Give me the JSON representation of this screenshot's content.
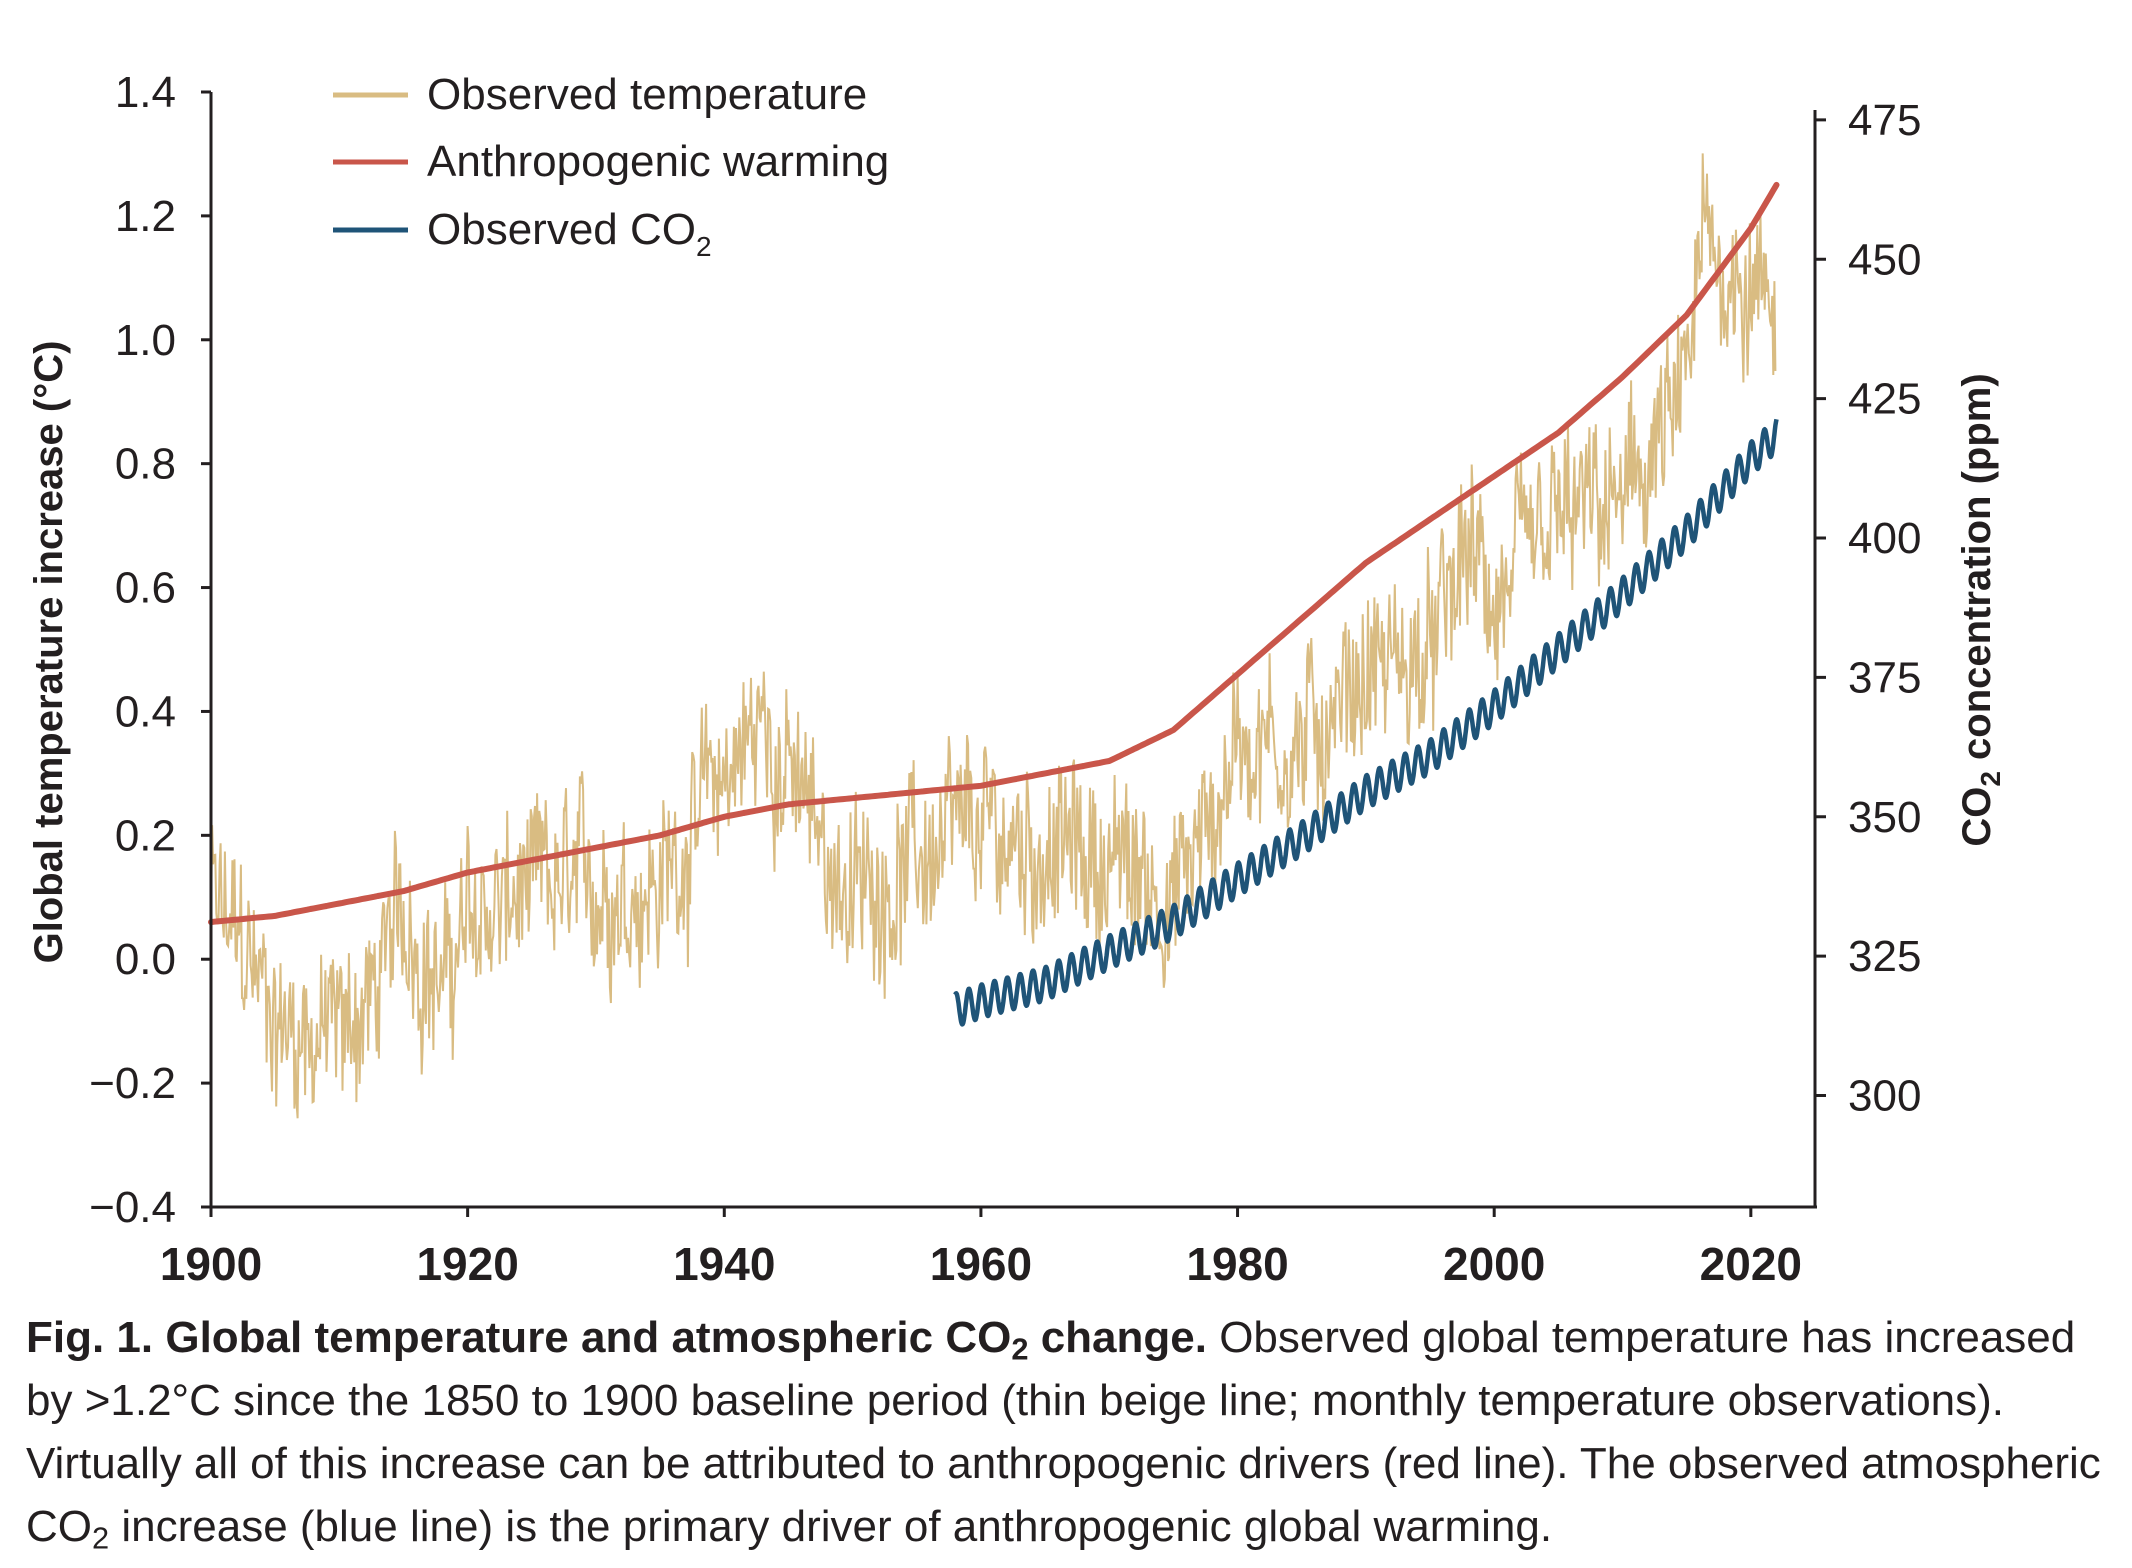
{
  "chart_data": {
    "type": "line",
    "title": "Global temperature and atmospheric CO2 change",
    "x": {
      "label": "",
      "range": [
        1900,
        2025
      ],
      "ticks": [
        1900,
        1920,
        1940,
        1960,
        1980,
        2000,
        2020
      ],
      "tick_labels": [
        "1900",
        "1920",
        "1940",
        "1960",
        "1980",
        "2000",
        "2020"
      ]
    },
    "y_left": {
      "label": "Global temperature increase (°C)",
      "range": [
        -0.4,
        1.4
      ],
      "ticks": [
        -0.4,
        -0.2,
        0.0,
        0.2,
        0.4,
        0.6,
        0.8,
        1.0,
        1.2,
        1.4
      ],
      "tick_labels": [
        "−0.4",
        "−0.2",
        "0.0",
        "0.2",
        "0.4",
        "0.6",
        "0.8",
        "1.0",
        "1.2",
        "1.4"
      ]
    },
    "y_right": {
      "label_main": "CO",
      "label_sub": "2",
      "label_rest": " concentration (ppm)",
      "range": [
        280,
        480
      ],
      "ticks": [
        300,
        325,
        350,
        375,
        400,
        425,
        450,
        475
      ],
      "tick_labels": [
        "300",
        "325",
        "350",
        "375",
        "400",
        "425",
        "450",
        "475"
      ]
    },
    "legend_position": "top-left",
    "series": [
      {
        "name": "Observed temperature",
        "legend_label": "Observed temperature",
        "axis": "left",
        "color": "#d9bc82",
        "style": "thin",
        "monthly": true,
        "trend_x": [
          1900,
          1903,
          1905,
          1908,
          1910,
          1913,
          1915,
          1918,
          1920,
          1925,
          1930,
          1935,
          1940,
          1943,
          1945,
          1948,
          1950,
          1955,
          1960,
          1965,
          1970,
          1975,
          1978,
          1980,
          1985,
          1990,
          1995,
          1998,
          2000,
          2005,
          2010,
          2015,
          2016,
          2020,
          2021
        ],
        "trend_y": [
          0.09,
          0.0,
          -0.1,
          -0.12,
          -0.12,
          -0.05,
          0.08,
          -0.05,
          0.06,
          0.1,
          0.12,
          0.12,
          0.3,
          0.38,
          0.3,
          0.17,
          0.1,
          0.16,
          0.2,
          0.18,
          0.16,
          0.1,
          0.22,
          0.36,
          0.34,
          0.47,
          0.48,
          0.66,
          0.56,
          0.7,
          0.73,
          0.9,
          1.14,
          1.1,
          1.06
        ]
      },
      {
        "name": "Anthropogenic warming",
        "legend_label": "Anthropogenic warming",
        "axis": "left",
        "color": "#c9564a",
        "x": [
          1900,
          1905,
          1910,
          1915,
          1920,
          1925,
          1930,
          1935,
          1940,
          1945,
          1950,
          1955,
          1960,
          1965,
          1970,
          1975,
          1980,
          1985,
          1990,
          1995,
          2000,
          2005,
          2010,
          2015,
          2020,
          2022
        ],
        "y": [
          0.06,
          0.07,
          0.09,
          0.11,
          0.14,
          0.16,
          0.18,
          0.2,
          0.23,
          0.25,
          0.26,
          0.27,
          0.28,
          0.3,
          0.32,
          0.37,
          0.46,
          0.55,
          0.64,
          0.71,
          0.78,
          0.85,
          0.94,
          1.04,
          1.18,
          1.25
        ]
      },
      {
        "name": "Observed CO2",
        "legend_label": "Observed CO",
        "legend_sub": "2",
        "axis": "right",
        "color": "#1f5478",
        "x": [
          1958,
          1960,
          1965,
          1970,
          1975,
          1980,
          1985,
          1990,
          1995,
          2000,
          2005,
          2010,
          2015,
          2020,
          2022
        ],
        "y": [
          315.3,
          316.9,
          320.0,
          325.7,
          331.1,
          338.7,
          346.1,
          354.4,
          360.8,
          369.7,
          379.8,
          389.9,
          401.0,
          414.2,
          418.5
        ],
        "seasonal_amplitude_ppm": 3.0
      }
    ]
  },
  "caption": {
    "bold_part1": "Fig. 1. Global temperature and atmospheric CO",
    "bold_sub": "2",
    "bold_part2": " change.",
    "text1": " Observed global temperature has increased by >1.2°C since the 1850 to 1900 baseline period (thin beige line; monthly temperature observations). Virtually all of this increase can be attributed to anthropogenic drivers (red line). The observed atmospheric CO",
    "text_sub": "2",
    "text2": " increase (blue line) is the primary driver of anthropogenic global warming."
  }
}
